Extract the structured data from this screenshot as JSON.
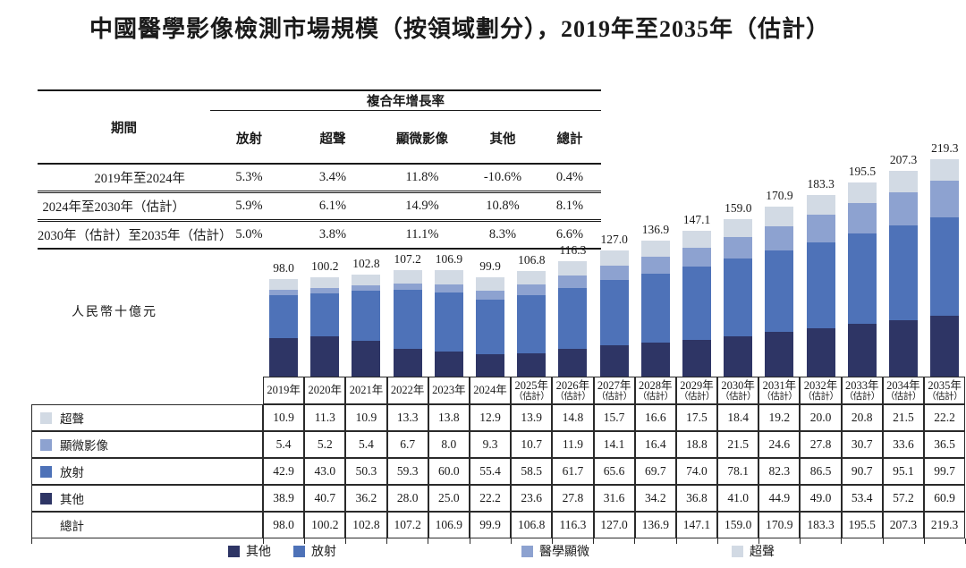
{
  "page": {
    "title": "中國醫學影像檢測市場規模（按領域劃分），2019年至2035年（估計）"
  },
  "cagr_table": {
    "period_header": "期間",
    "group_header": "複合年增長率",
    "column_headers": [
      "放射",
      "超聲",
      "顯微影像",
      "其他",
      "總計"
    ],
    "rows": [
      {
        "label": "2019年至2024年",
        "values": [
          "5.3%",
          "3.4%",
          "11.8%",
          "-10.6%",
          "0.4%"
        ]
      },
      {
        "label": "2024年至2030年（估計）",
        "values": [
          "5.9%",
          "6.1%",
          "14.9%",
          "10.8%",
          "8.1%"
        ]
      },
      {
        "label": "2030年（估計）至2035年（估計）",
        "values": [
          "5.0%",
          "3.8%",
          "11.1%",
          "8.3%",
          "6.6%"
        ]
      }
    ]
  },
  "chart_data": {
    "type": "bar",
    "stacked": true,
    "title": "中國醫學影像檢測市場規模（按領域劃分），2019年至2035年（估計）",
    "ylabel": "人民幣十億元",
    "categories": [
      {
        "year": "2019年",
        "note": ""
      },
      {
        "year": "2020年",
        "note": ""
      },
      {
        "year": "2021年",
        "note": ""
      },
      {
        "year": "2022年",
        "note": ""
      },
      {
        "year": "2023年",
        "note": ""
      },
      {
        "year": "2024年",
        "note": ""
      },
      {
        "year": "2025年",
        "note": "（估計）"
      },
      {
        "year": "2026年",
        "note": "（估計）"
      },
      {
        "year": "2027年",
        "note": "（估計）"
      },
      {
        "year": "2028年",
        "note": "（估計）"
      },
      {
        "year": "2029年",
        "note": "（估計）"
      },
      {
        "year": "2030年",
        "note": "（估計）"
      },
      {
        "year": "2031年",
        "note": "（估計）"
      },
      {
        "year": "2032年",
        "note": "（估計）"
      },
      {
        "year": "2033年",
        "note": "（估計）"
      },
      {
        "year": "2034年",
        "note": "（估計）"
      },
      {
        "year": "2035年",
        "note": "（估計）"
      }
    ],
    "series": [
      {
        "name": "其他",
        "color": "#2e3565",
        "values": [
          38.9,
          40.7,
          36.2,
          28.0,
          25.0,
          22.2,
          23.6,
          27.8,
          31.6,
          34.2,
          36.8,
          41.0,
          44.9,
          49.0,
          53.4,
          57.2,
          60.9
        ]
      },
      {
        "name": "放射",
        "color": "#4e72b8",
        "values": [
          42.9,
          43.0,
          50.3,
          59.3,
          60.0,
          55.4,
          58.5,
          61.7,
          65.6,
          69.7,
          74.0,
          78.1,
          82.3,
          86.5,
          90.7,
          95.1,
          99.7
        ]
      },
      {
        "name": "顯微影像",
        "color": "#8da2d0",
        "values": [
          5.4,
          5.2,
          5.4,
          6.7,
          8.0,
          9.3,
          10.7,
          11.9,
          14.1,
          16.4,
          18.8,
          21.5,
          24.6,
          27.8,
          30.7,
          33.6,
          36.5
        ]
      },
      {
        "name": "超聲",
        "color": "#d2dae4",
        "values": [
          10.9,
          11.3,
          10.9,
          13.3,
          13.8,
          12.9,
          13.9,
          14.8,
          15.7,
          16.6,
          17.5,
          18.4,
          19.2,
          20.0,
          20.8,
          21.5,
          22.2
        ]
      }
    ],
    "totals": [
      98.0,
      100.2,
      102.8,
      107.2,
      106.9,
      99.9,
      106.8,
      116.3,
      127.0,
      136.9,
      147.1,
      159.0,
      170.9,
      183.3,
      195.5,
      207.3,
      219.3
    ],
    "total_row_label": "總計",
    "legend": [
      {
        "label": "其他",
        "color": "#2e3565"
      },
      {
        "label": "放射",
        "color": "#4e72b8"
      },
      {
        "label": "醫學顯微",
        "color": "#8da2d0"
      },
      {
        "label": "超聲",
        "color": "#d2dae4"
      }
    ],
    "table_display_order": [
      3,
      2,
      1,
      0
    ]
  }
}
